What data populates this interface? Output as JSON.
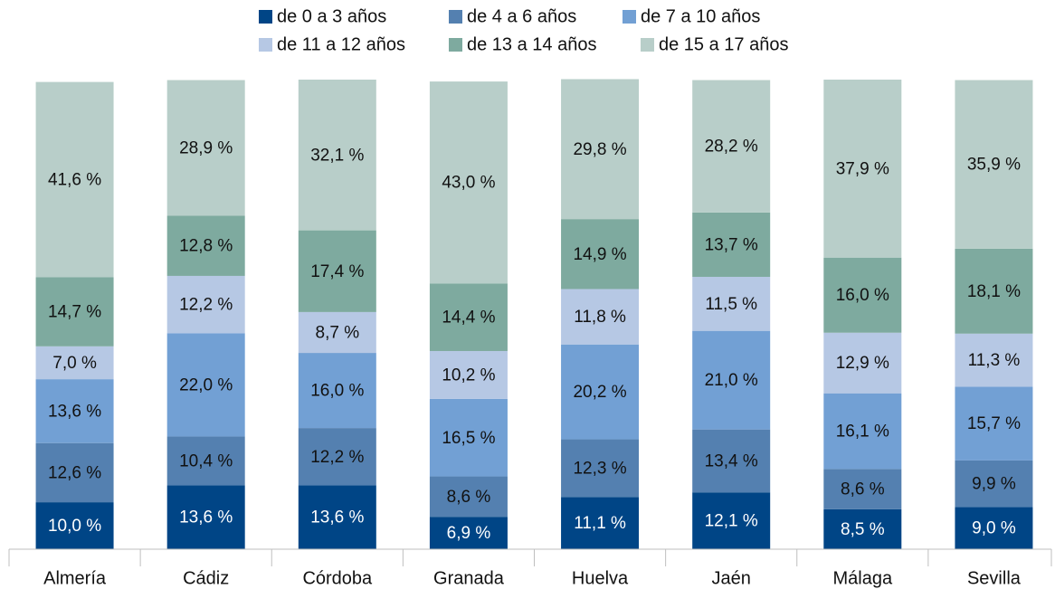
{
  "chart_data": {
    "type": "stacked_bar",
    "categories": [
      "Almería",
      "Cádiz",
      "Córdoba",
      "Granada",
      "Huelva",
      "Jaén",
      "Málaga",
      "Sevilla"
    ],
    "ylim": [
      0,
      100
    ],
    "series": [
      {
        "name": "de 0 a 3 años",
        "color": "#004586",
        "values": [
          10.0,
          13.6,
          13.6,
          6.9,
          11.1,
          12.1,
          8.5,
          9.0
        ],
        "value_labels": [
          "10,0 %",
          "13,6 %",
          "13,6 %",
          "6,9 %",
          "11,1 %",
          "12,1 %",
          "8,5 %",
          "9,0 %"
        ]
      },
      {
        "name": "de 4 a 6 años",
        "color": "#5480b0",
        "values": [
          12.6,
          10.4,
          12.2,
          8.6,
          12.3,
          13.4,
          8.6,
          9.9
        ],
        "value_labels": [
          "12,6 %",
          "10,4 %",
          "12,2 %",
          "8,6 %",
          "12,3 %",
          "13,4 %",
          "8,6 %",
          "9,9 %"
        ]
      },
      {
        "name": "de 7 a 10 años",
        "color": "#72a0d4",
        "values": [
          13.6,
          22.0,
          16.0,
          16.5,
          20.2,
          21.0,
          16.1,
          15.7
        ],
        "value_labels": [
          "13,6 %",
          "22,0 %",
          "16,0 %",
          "16,5 %",
          "20,2 %",
          "21,0 %",
          "16,1 %",
          "15,7 %"
        ]
      },
      {
        "name": "de 11 a 12 años",
        "color": "#b6c8e4",
        "values": [
          7.0,
          12.2,
          8.7,
          10.2,
          11.8,
          11.5,
          12.9,
          11.3
        ],
        "value_labels": [
          "7,0 %",
          "12,2 %",
          "8,7 %",
          "10,2 %",
          "11,8 %",
          "11,5 %",
          "12,9 %",
          "11,3 %"
        ]
      },
      {
        "name": "de 13 a 14 años",
        "color": "#7eaa9f",
        "values": [
          14.7,
          12.8,
          17.4,
          14.4,
          14.9,
          13.7,
          16.0,
          18.1
        ],
        "value_labels": [
          "14,7 %",
          "12,8 %",
          "17,4 %",
          "14,4 %",
          "14,9 %",
          "13,7 %",
          "16,0 %",
          "18,1 %"
        ]
      },
      {
        "name": "de 15 a 17 años",
        "color": "#b8cec9",
        "values": [
          41.6,
          28.9,
          32.1,
          43.0,
          29.8,
          28.2,
          37.9,
          35.9
        ],
        "value_labels": [
          "41,6 %",
          "28,9 %",
          "32,1 %",
          "43,0 %",
          "29,8 %",
          "28,2 %",
          "37,9 %",
          "35,9 %"
        ]
      }
    ],
    "legend": "top"
  }
}
